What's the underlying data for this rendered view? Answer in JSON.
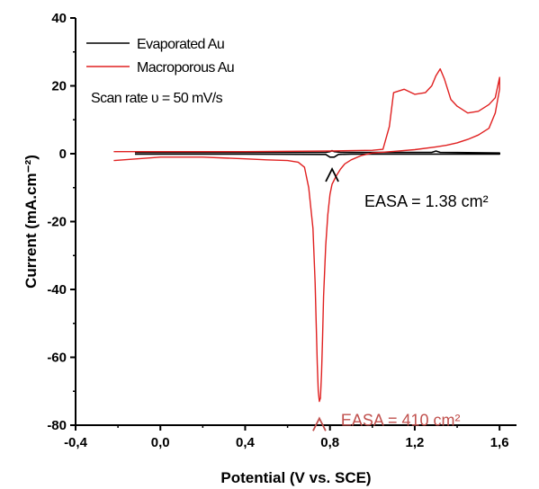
{
  "chart_data": {
    "type": "line",
    "title": "",
    "xlabel": "Potential (V vs. SCE)",
    "ylabel": "Current (mA.cm⁻²)",
    "xlim": [
      -0.4,
      1.68
    ],
    "ylim": [
      -80,
      40
    ],
    "x_ticks": [
      -0.4,
      0.0,
      0.4,
      0.8,
      1.2,
      1.6
    ],
    "x_tick_labels": [
      "-0,4",
      "0,0",
      "0,4",
      "0,8",
      "1,2",
      "1,6"
    ],
    "y_ticks": [
      -80,
      -60,
      -40,
      -20,
      0,
      20,
      40
    ],
    "y_tick_labels": [
      "-80",
      "-60",
      "-40",
      "-20",
      "0",
      "20",
      "40"
    ],
    "legend_position": "top-left",
    "legend_note": "Scan rate υ = 50 mV/s",
    "series": [
      {
        "name": "Evaporated Au",
        "color": "#000000",
        "x": [
          -0.12,
          0.3,
          0.6,
          0.78,
          0.8,
          0.81,
          0.82,
          0.85,
          1.0,
          1.28,
          1.3,
          1.32,
          1.6,
          1.6,
          1.2,
          0.9,
          0.84,
          0.82,
          0.8,
          0.78,
          0.4,
          0.0,
          -0.12
        ],
        "y": [
          0.4,
          0.4,
          0.4,
          0.4,
          0.6,
          0.9,
          0.6,
          0.4,
          0.4,
          0.4,
          0.8,
          0.4,
          0.2,
          -0.1,
          -0.1,
          -0.1,
          -0.2,
          -1.0,
          -1.0,
          -0.2,
          -0.1,
          -0.1,
          -0.1
        ]
      },
      {
        "name": "Macroporous Au",
        "color": "#e02020",
        "x": [
          -0.22,
          0.0,
          0.4,
          0.8,
          1.0,
          1.05,
          1.08,
          1.1,
          1.15,
          1.2,
          1.25,
          1.28,
          1.3,
          1.32,
          1.34,
          1.37,
          1.4,
          1.45,
          1.5,
          1.55,
          1.58,
          1.6,
          1.6,
          1.58,
          1.55,
          1.5,
          1.45,
          1.4,
          1.35,
          1.3,
          1.2,
          1.1,
          1.0,
          0.95,
          0.9,
          0.87,
          0.85,
          0.83,
          0.81,
          0.8,
          0.79,
          0.78,
          0.77,
          0.765,
          0.76,
          0.755,
          0.75,
          0.745,
          0.74,
          0.735,
          0.73,
          0.72,
          0.7,
          0.68,
          0.65,
          0.6,
          0.5,
          0.4,
          0.2,
          0.0,
          -0.22
        ],
        "y": [
          0.6,
          0.6,
          0.6,
          0.8,
          1.0,
          1.3,
          8.0,
          18.0,
          19.0,
          17.5,
          18.0,
          20.0,
          23.0,
          25.0,
          22.0,
          16.0,
          14.0,
          12.0,
          12.5,
          14.5,
          16.5,
          22.5,
          19.0,
          12.0,
          7.5,
          5.5,
          4.2,
          3.2,
          2.5,
          2.0,
          1.2,
          0.7,
          0.2,
          -0.5,
          -1.8,
          -3.0,
          -4.5,
          -6.5,
          -9.0,
          -12.0,
          -18.0,
          -27.0,
          -42.0,
          -55.0,
          -65.0,
          -72.0,
          -73.0,
          -70.0,
          -62.0,
          -50.0,
          -38.0,
          -22.0,
          -10.0,
          -4.0,
          -2.5,
          -2.0,
          -1.8,
          -1.5,
          -1.0,
          -1.0,
          -2.0
        ]
      }
    ],
    "annotations": [
      {
        "text": "EASA = 1.38 cm²",
        "color": "#000000",
        "x": 0.81,
        "y": -4.5
      },
      {
        "text": "EASA = 410 cm²",
        "color": "#c0504d",
        "x": 0.75,
        "y": -78.5
      }
    ]
  }
}
